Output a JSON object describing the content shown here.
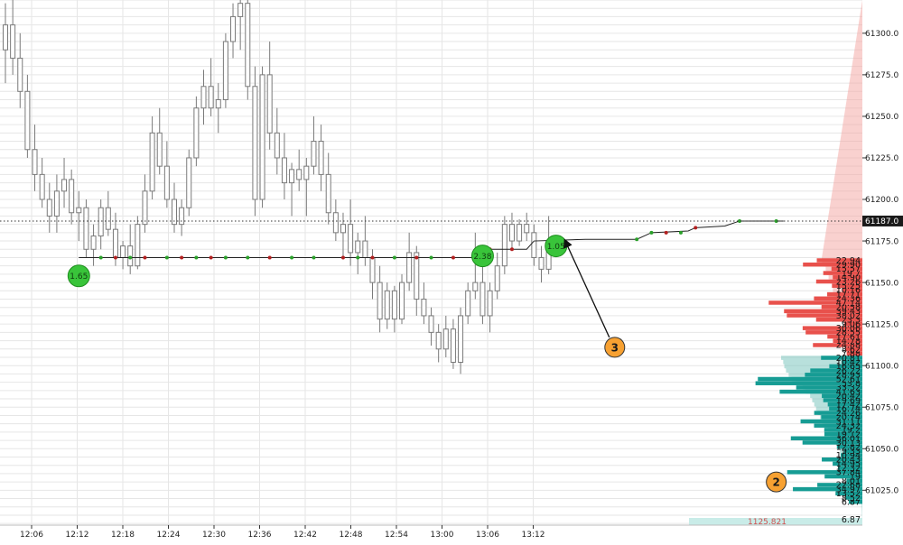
{
  "chart_data": {
    "type": "candlestick",
    "price_axis": {
      "range": [
        61004,
        61320
      ],
      "ticks": [
        "61300.0",
        "61275.0",
        "61250.0",
        "61225.0",
        "61200.0",
        "61175.0",
        "61150.0",
        "61125.0",
        "61100.0",
        "61075.0",
        "61050.0",
        "61025.0"
      ]
    },
    "time_axis": {
      "ticks": [
        "12:06",
        "12:12",
        "12:18",
        "12:24",
        "12:30",
        "12:36",
        "12:42",
        "12:48",
        "12:54",
        "13:00",
        "13:06",
        "13:12"
      ]
    },
    "current_price": {
      "value": 61187.0,
      "label": "61187.0"
    },
    "candles": [
      {
        "o": 61290,
        "h": 61318,
        "l": 61270,
        "c": 61305
      },
      {
        "o": 61305,
        "h": 61320,
        "l": 61275,
        "c": 61285
      },
      {
        "o": 61285,
        "h": 61300,
        "l": 61255,
        "c": 61265
      },
      {
        "o": 61265,
        "h": 61275,
        "l": 61225,
        "c": 61230
      },
      {
        "o": 61230,
        "h": 61245,
        "l": 61205,
        "c": 61215
      },
      {
        "o": 61215,
        "h": 61225,
        "l": 61195,
        "c": 61200
      },
      {
        "o": 61200,
        "h": 61210,
        "l": 61180,
        "c": 61190
      },
      {
        "o": 61190,
        "h": 61215,
        "l": 61180,
        "c": 61205
      },
      {
        "o": 61205,
        "h": 61225,
        "l": 61195,
        "c": 61212
      },
      {
        "o": 61212,
        "h": 61218,
        "l": 61185,
        "c": 61192
      },
      {
        "o": 61192,
        "h": 61205,
        "l": 61175,
        "c": 61195
      },
      {
        "o": 61195,
        "h": 61200,
        "l": 61165,
        "c": 61170
      },
      {
        "o": 61170,
        "h": 61185,
        "l": 61160,
        "c": 61178
      },
      {
        "o": 61178,
        "h": 61200,
        "l": 61170,
        "c": 61195
      },
      {
        "o": 61195,
        "h": 61205,
        "l": 61178,
        "c": 61182
      },
      {
        "o": 61182,
        "h": 61192,
        "l": 61160,
        "c": 61165
      },
      {
        "o": 61165,
        "h": 61175,
        "l": 61158,
        "c": 61172
      },
      {
        "o": 61172,
        "h": 61185,
        "l": 61155,
        "c": 61160
      },
      {
        "o": 61160,
        "h": 61190,
        "l": 61158,
        "c": 61185
      },
      {
        "o": 61185,
        "h": 61215,
        "l": 61180,
        "c": 61205
      },
      {
        "o": 61205,
        "h": 61250,
        "l": 61200,
        "c": 61240
      },
      {
        "o": 61240,
        "h": 61255,
        "l": 61215,
        "c": 61220
      },
      {
        "o": 61220,
        "h": 61235,
        "l": 61195,
        "c": 61200
      },
      {
        "o": 61200,
        "h": 61210,
        "l": 61180,
        "c": 61185
      },
      {
        "o": 61185,
        "h": 61200,
        "l": 61178,
        "c": 61195
      },
      {
        "o": 61195,
        "h": 61230,
        "l": 61190,
        "c": 61225
      },
      {
        "o": 61225,
        "h": 61262,
        "l": 61220,
        "c": 61255
      },
      {
        "o": 61255,
        "h": 61278,
        "l": 61245,
        "c": 61268
      },
      {
        "o": 61268,
        "h": 61285,
        "l": 61250,
        "c": 61255
      },
      {
        "o": 61255,
        "h": 61270,
        "l": 61240,
        "c": 61260
      },
      {
        "o": 61260,
        "h": 61300,
        "l": 61255,
        "c": 61295
      },
      {
        "o": 61295,
        "h": 61318,
        "l": 61285,
        "c": 61310
      },
      {
        "o": 61310,
        "h": 61320,
        "l": 61290,
        "c": 61318
      },
      {
        "o": 61318,
        "h": 61320,
        "l": 61260,
        "c": 61268
      },
      {
        "o": 61268,
        "h": 61280,
        "l": 61190,
        "c": 61200
      },
      {
        "o": 61200,
        "h": 61280,
        "l": 61195,
        "c": 61275
      },
      {
        "o": 61275,
        "h": 61295,
        "l": 61230,
        "c": 61240
      },
      {
        "o": 61240,
        "h": 61255,
        "l": 61215,
        "c": 61225
      },
      {
        "o": 61225,
        "h": 61240,
        "l": 61200,
        "c": 61210
      },
      {
        "o": 61210,
        "h": 61222,
        "l": 61190,
        "c": 61218
      },
      {
        "o": 61218,
        "h": 61230,
        "l": 61205,
        "c": 61212
      },
      {
        "o": 61212,
        "h": 61225,
        "l": 61190,
        "c": 61220
      },
      {
        "o": 61220,
        "h": 61250,
        "l": 61215,
        "c": 61235
      },
      {
        "o": 61235,
        "h": 61245,
        "l": 61205,
        "c": 61215
      },
      {
        "o": 61215,
        "h": 61228,
        "l": 61185,
        "c": 61192
      },
      {
        "o": 61192,
        "h": 61200,
        "l": 61175,
        "c": 61180
      },
      {
        "o": 61180,
        "h": 61192,
        "l": 61165,
        "c": 61185
      },
      {
        "o": 61185,
        "h": 61200,
        "l": 61160,
        "c": 61168
      },
      {
        "o": 61168,
        "h": 61180,
        "l": 61155,
        "c": 61175
      },
      {
        "o": 61175,
        "h": 61190,
        "l": 61160,
        "c": 61165
      },
      {
        "o": 61165,
        "h": 61170,
        "l": 61140,
        "c": 61150
      },
      {
        "o": 61150,
        "h": 61160,
        "l": 61120,
        "c": 61128
      },
      {
        "o": 61128,
        "h": 61150,
        "l": 61122,
        "c": 61145
      },
      {
        "o": 61145,
        "h": 61148,
        "l": 61120,
        "c": 61128
      },
      {
        "o": 61128,
        "h": 61155,
        "l": 61125,
        "c": 61150
      },
      {
        "o": 61150,
        "h": 61180,
        "l": 61145,
        "c": 61168
      },
      {
        "o": 61168,
        "h": 61172,
        "l": 61130,
        "c": 61140
      },
      {
        "o": 61140,
        "h": 61150,
        "l": 61125,
        "c": 61130
      },
      {
        "o": 61130,
        "h": 61135,
        "l": 61112,
        "c": 61120
      },
      {
        "o": 61120,
        "h": 61125,
        "l": 61102,
        "c": 61110
      },
      {
        "o": 61110,
        "h": 61130,
        "l": 61105,
        "c": 61122
      },
      {
        "o": 61122,
        "h": 61128,
        "l": 61098,
        "c": 61102
      },
      {
        "o": 61102,
        "h": 61135,
        "l": 61095,
        "c": 61130
      },
      {
        "o": 61130,
        "h": 61150,
        "l": 61125,
        "c": 61145
      },
      {
        "o": 61145,
        "h": 61180,
        "l": 61140,
        "c": 61150
      },
      {
        "o": 61150,
        "h": 61160,
        "l": 61125,
        "c": 61130
      },
      {
        "o": 61130,
        "h": 61150,
        "l": 61120,
        "c": 61145
      },
      {
        "o": 61145,
        "h": 61168,
        "l": 61140,
        "c": 61160
      },
      {
        "o": 61160,
        "h": 61190,
        "l": 61155,
        "c": 61185
      },
      {
        "o": 61185,
        "h": 61192,
        "l": 61170,
        "c": 61175
      },
      {
        "o": 61175,
        "h": 61188,
        "l": 61172,
        "c": 61185
      },
      {
        "o": 61185,
        "h": 61192,
        "l": 61175,
        "c": 61180
      },
      {
        "o": 61180,
        "h": 61185,
        "l": 61160,
        "c": 61165
      },
      {
        "o": 61165,
        "h": 61172,
        "l": 61150,
        "c": 61158
      },
      {
        "o": 61158,
        "h": 61190,
        "l": 61155,
        "c": 61170
      }
    ],
    "trade_line": [
      {
        "i": 10,
        "p": 61165
      },
      {
        "i": 65,
        "p": 61165
      },
      {
        "i": 66,
        "p": 61170
      },
      {
        "i": 71,
        "p": 61170
      },
      {
        "i": 72,
        "p": 61175
      },
      {
        "i": 79,
        "p": 61176
      },
      {
        "i": 86,
        "p": 61176
      },
      {
        "i": 88,
        "p": 61180
      },
      {
        "i": 93,
        "p": 61181
      },
      {
        "i": 94,
        "p": 61183
      },
      {
        "i": 98,
        "p": 61184
      },
      {
        "i": 100,
        "p": 61187
      },
      {
        "i": 106,
        "p": 61187
      }
    ],
    "trade_dots": [
      {
        "i": 13,
        "p": 61165,
        "c": "green"
      },
      {
        "i": 15,
        "p": 61165,
        "c": "red"
      },
      {
        "i": 17,
        "p": 61165,
        "c": "green"
      },
      {
        "i": 19,
        "p": 61165,
        "c": "red"
      },
      {
        "i": 22,
        "p": 61165,
        "c": "green"
      },
      {
        "i": 24,
        "p": 61165,
        "c": "red"
      },
      {
        "i": 26,
        "p": 61165,
        "c": "green"
      },
      {
        "i": 28,
        "p": 61165,
        "c": "red"
      },
      {
        "i": 30,
        "p": 61165,
        "c": "green"
      },
      {
        "i": 33,
        "p": 61165,
        "c": "green"
      },
      {
        "i": 36,
        "p": 61165,
        "c": "red"
      },
      {
        "i": 39,
        "p": 61165,
        "c": "green"
      },
      {
        "i": 42,
        "p": 61165,
        "c": "green"
      },
      {
        "i": 46,
        "p": 61165,
        "c": "red"
      },
      {
        "i": 48,
        "p": 61165,
        "c": "green"
      },
      {
        "i": 50,
        "p": 61165,
        "c": "red"
      },
      {
        "i": 53,
        "p": 61165,
        "c": "green"
      },
      {
        "i": 56,
        "p": 61165,
        "c": "red"
      },
      {
        "i": 58,
        "p": 61165,
        "c": "green"
      },
      {
        "i": 61,
        "p": 61165,
        "c": "red"
      },
      {
        "i": 64,
        "p": 61165,
        "c": "green"
      },
      {
        "i": 66,
        "p": 61170,
        "c": "red"
      },
      {
        "i": 69,
        "p": 61170,
        "c": "red"
      },
      {
        "i": 74,
        "p": 61175,
        "c": "green"
      },
      {
        "i": 76,
        "p": 61175,
        "c": "red"
      },
      {
        "i": 86,
        "p": 61176,
        "c": "green"
      },
      {
        "i": 88,
        "p": 61180,
        "c": "green"
      },
      {
        "i": 90,
        "p": 61180,
        "c": "red"
      },
      {
        "i": 92,
        "p": 61180,
        "c": "green"
      },
      {
        "i": 94,
        "p": 61183,
        "c": "red"
      },
      {
        "i": 100,
        "p": 61187,
        "c": "green"
      },
      {
        "i": 105,
        "p": 61187,
        "c": "green"
      }
    ],
    "markers": [
      {
        "label": "1.65",
        "i": 10,
        "p": 61154
      },
      {
        "label": "2.38",
        "i": 65,
        "p": 61166
      },
      {
        "label": "1.05",
        "i": 75,
        "p": 61172
      }
    ],
    "annotations": [
      {
        "label": "3",
        "i": 83,
        "p": 61111
      },
      {
        "label": "2",
        "i": 105,
        "p": 61030
      }
    ],
    "dom": {
      "start_price": 61018,
      "step": 2.55,
      "bid_values": [
        "6.87",
        "8.52",
        "13.52",
        "34.97",
        "22.68",
        "8.01",
        "19",
        "37.84",
        "12.32",
        "14.95",
        "20.43",
        "10.94",
        "9.33",
        "12.82",
        "30.13",
        "36.01",
        "19.12",
        "19.2",
        "24.32",
        "31.11",
        "20.74",
        "24.26",
        "16.74",
        "17.42",
        "19.69",
        "20.42",
        "41.63",
        "33.32",
        "53.8",
        "52.61",
        "28.93",
        "26.22",
        "16.65",
        "10.42",
        "20.81"
      ],
      "ask_values": [
        "7.88",
        "8.62",
        "24.88",
        "14.78",
        "17.61",
        "28.55",
        "30.06",
        "9.06",
        "23.3",
        "38.02",
        "39.43",
        "20.58",
        "47.14",
        "24.36",
        "17.71",
        "10.16",
        "15.25",
        "23.26",
        "14.90",
        "19.7",
        "15.57",
        "29.90",
        "22.94"
      ],
      "footer_label": "1125.821",
      "footer_value": "6.87"
    },
    "colors": {
      "ask": "#e8514c",
      "bid": "#169c94",
      "bid_cumulative": "#7ec7c0",
      "marker_fill": "#39c43a",
      "annotation_fill": "#f7a132",
      "candle_stroke": "#7a7a7a"
    },
    "grid": true
  }
}
